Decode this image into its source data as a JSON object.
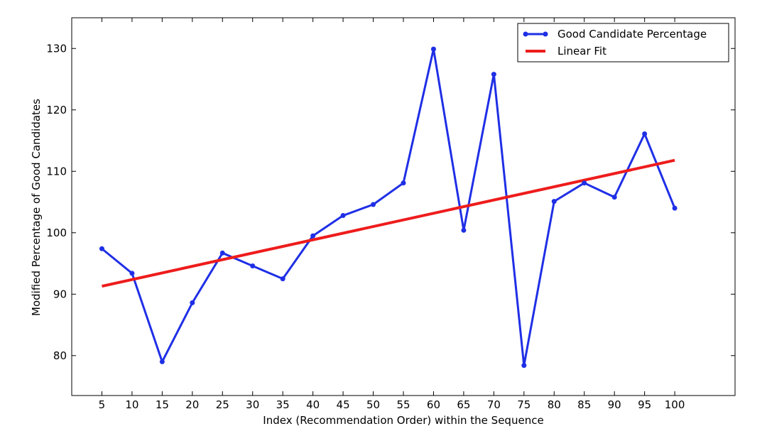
{
  "chart_data": {
    "type": "line",
    "title": "",
    "xlabel": "Index (Recommendation Order) within the Sequence",
    "ylabel": "Modified Percentage of Good Candidates",
    "x_ticks": [
      5,
      10,
      15,
      20,
      25,
      30,
      35,
      40,
      45,
      50,
      55,
      60,
      65,
      70,
      75,
      80,
      85,
      90,
      95,
      100
    ],
    "y_ticks": [
      80,
      90,
      100,
      110,
      120,
      130
    ],
    "xlim": [
      0,
      110
    ],
    "ylim": [
      73.5,
      135
    ],
    "grid": false,
    "legend_position": "top-right",
    "series": [
      {
        "name": "Good Candidate Percentage",
        "color": "#1f2fe6",
        "marker": "circle",
        "x": [
          5,
          10,
          15,
          20,
          25,
          30,
          35,
          40,
          45,
          50,
          55,
          60,
          65,
          70,
          75,
          80,
          85,
          90,
          95,
          100
        ],
        "y": [
          97.4,
          93.4,
          79.0,
          88.6,
          96.7,
          94.6,
          92.5,
          99.5,
          102.8,
          104.6,
          108.1,
          129.9,
          100.4,
          125.8,
          78.4,
          105.1,
          108.1,
          105.8,
          116.1,
          104.0
        ]
      },
      {
        "name": "Linear Fit",
        "color": "#ee1c1c",
        "marker": "none",
        "x": [
          5,
          100
        ],
        "y": [
          91.3,
          111.8
        ]
      }
    ]
  }
}
